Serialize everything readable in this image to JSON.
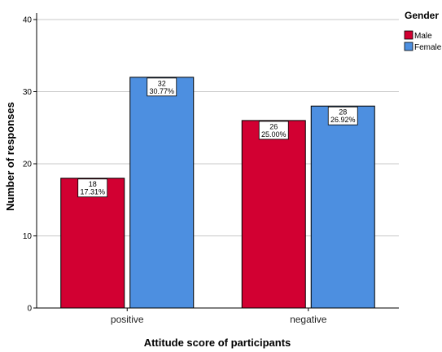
{
  "chart_data": {
    "type": "bar",
    "categories": [
      "positive",
      "negative"
    ],
    "series": [
      {
        "name": "Male",
        "color": "#d20032",
        "values": [
          18,
          26
        ],
        "labels": [
          [
            "18",
            "17.31%"
          ],
          [
            "26",
            "25.00%"
          ]
        ]
      },
      {
        "name": "Female",
        "color": "#4d8fe0",
        "values": [
          32,
          28
        ],
        "labels": [
          [
            "32",
            "30.77%"
          ],
          [
            "28",
            "26.92%"
          ]
        ]
      }
    ],
    "xlabel": "Attitude score of participants",
    "ylabel": "Number of responses",
    "ylim": [
      0,
      42
    ],
    "yticks": [
      0,
      10,
      20,
      30,
      40
    ],
    "legend_title": "Gender",
    "legend_position": "top-right",
    "grid": true
  }
}
